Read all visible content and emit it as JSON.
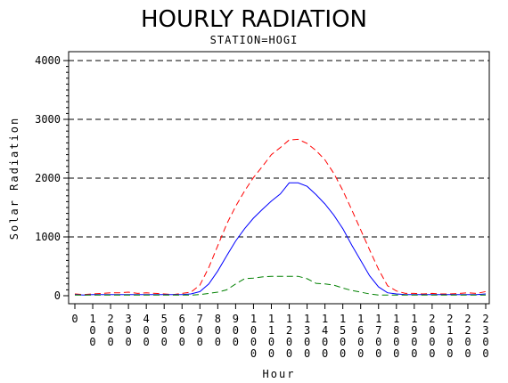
{
  "chart_data": {
    "type": "line",
    "title": "HOURLY RADIATION",
    "subtitle": "STATION=HOGI",
    "xlabel": "Hour",
    "ylabel": "Solar Radiation",
    "ylim": [
      0,
      4000
    ],
    "xlim": [
      0,
      2300
    ],
    "yticks": [
      0,
      1000,
      2000,
      3000,
      4000
    ],
    "xticks": [
      "0",
      "100",
      "200",
      "300",
      "400",
      "500",
      "600",
      "700",
      "800",
      "900",
      "1000",
      "1100",
      "1200",
      "1300",
      "1400",
      "1500",
      "1600",
      "1700",
      "1800",
      "1900",
      "2000",
      "2100",
      "2200",
      "2300"
    ],
    "grid": "horizontal dashed",
    "x": [
      0,
      50,
      100,
      150,
      200,
      250,
      300,
      350,
      400,
      450,
      500,
      550,
      600,
      650,
      700,
      750,
      800,
      850,
      900,
      950,
      1000,
      1050,
      1100,
      1150,
      1200,
      1250,
      1300,
      1350,
      1400,
      1450,
      1500,
      1550,
      1600,
      1650,
      1700,
      1750,
      1800,
      1850,
      1900,
      1950,
      2000,
      2050,
      2100,
      2150,
      2200,
      2250,
      2300
    ],
    "series": [
      {
        "color": "#ff0000",
        "dash": "dashed",
        "values": [
          30,
          20,
          30,
          40,
          50,
          50,
          60,
          40,
          50,
          40,
          30,
          20,
          40,
          60,
          180,
          480,
          850,
          1220,
          1520,
          1780,
          2010,
          2200,
          2400,
          2520,
          2650,
          2660,
          2590,
          2470,
          2310,
          2080,
          1790,
          1460,
          1120,
          780,
          450,
          170,
          80,
          40,
          40,
          30,
          40,
          30,
          30,
          40,
          50,
          40,
          70
        ]
      },
      {
        "color": "#0000ff",
        "dash": "solid",
        "values": [
          20,
          10,
          20,
          20,
          20,
          20,
          20,
          20,
          20,
          20,
          20,
          20,
          20,
          30,
          70,
          200,
          420,
          680,
          930,
          1140,
          1320,
          1470,
          1610,
          1730,
          1920,
          1920,
          1860,
          1720,
          1560,
          1370,
          1140,
          860,
          600,
          340,
          150,
          50,
          30,
          20,
          20,
          20,
          20,
          20,
          20,
          20,
          20,
          20,
          30
        ]
      },
      {
        "color": "#008000",
        "dash": "dashed",
        "values": [
          10,
          10,
          10,
          10,
          10,
          10,
          10,
          10,
          10,
          10,
          10,
          10,
          10,
          10,
          20,
          40,
          60,
          100,
          200,
          290,
          300,
          320,
          330,
          330,
          330,
          330,
          290,
          210,
          200,
          180,
          130,
          90,
          60,
          30,
          10,
          10,
          10,
          10,
          10,
          10,
          10,
          10,
          10,
          10,
          10,
          10,
          10
        ]
      }
    ]
  }
}
